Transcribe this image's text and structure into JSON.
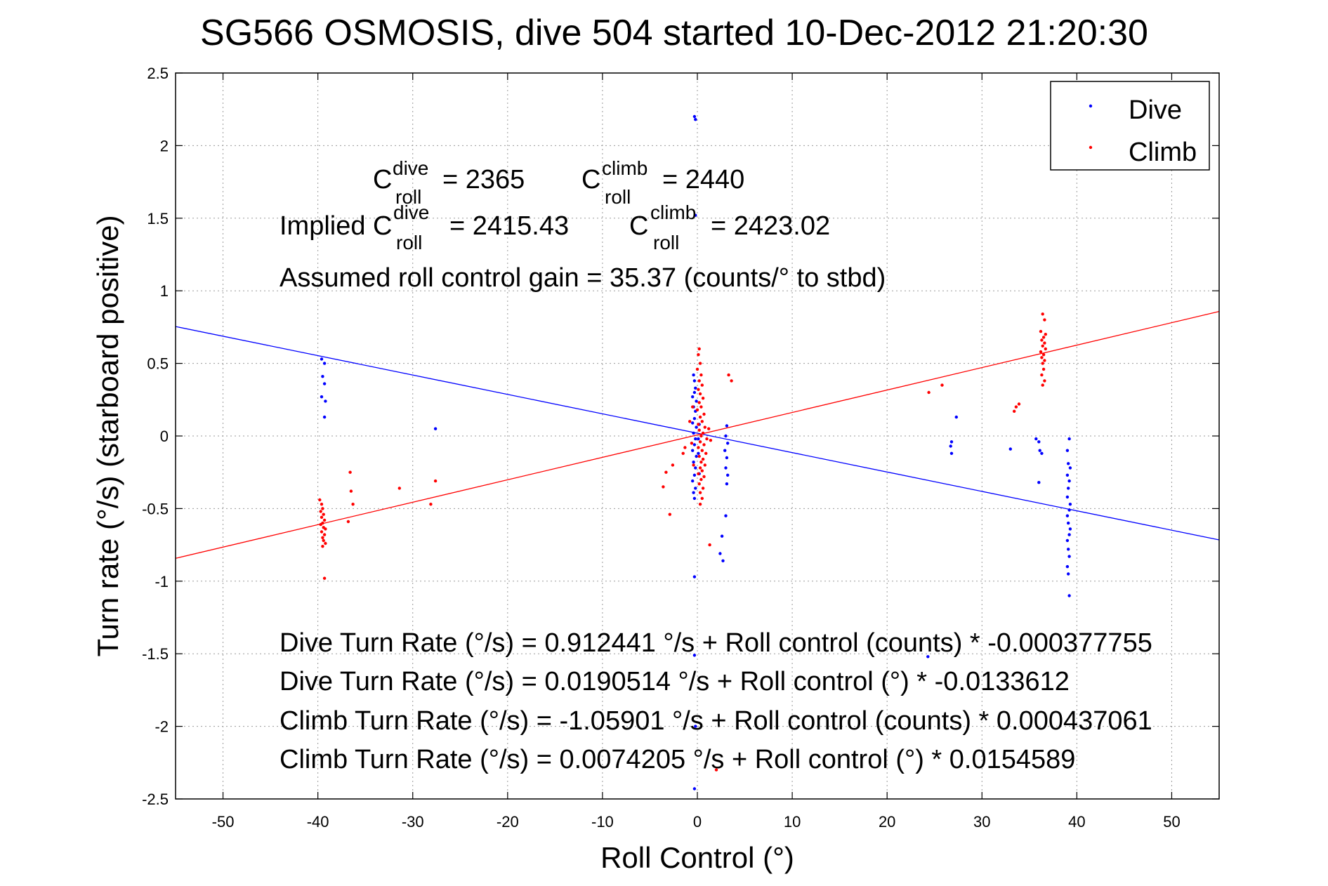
{
  "chart_data": {
    "type": "scatter",
    "title": "SG566 OSMOSIS, dive 504 started 10-Dec-2012 21:20:30",
    "xlabel": "Roll Control (°)",
    "ylabel": "Turn rate (°/s) (starboard positive)",
    "xlim": [
      -55,
      55
    ],
    "ylim": [
      -2.5,
      2.5
    ],
    "xticks": [
      -50,
      -40,
      -30,
      -20,
      -10,
      0,
      10,
      20,
      30,
      40,
      50
    ],
    "yticks": [
      -2.5,
      -2,
      -1.5,
      -1,
      -0.5,
      0,
      0.5,
      1,
      1.5,
      2,
      2.5
    ],
    "grid": true,
    "legend": {
      "position": "top-right",
      "entries": [
        {
          "label": "Dive",
          "color": "#0000ff"
        },
        {
          "label": "Climb",
          "color": "#ff0000"
        }
      ]
    },
    "annotations": {
      "c_dive_base": "C",
      "c_dive_sup": "dive",
      "c_dive_sub": "roll",
      "c_dive_value": "= 2365",
      "c_climb_base": "C",
      "c_climb_sup": "climb",
      "c_climb_sub": "roll",
      "c_climb_value": "= 2440",
      "implied_prefix": "Implied C",
      "implied_dive_sup": "dive",
      "implied_dive_sub": "roll",
      "implied_dive_value": "= 2415.43",
      "implied_climb_base": "C",
      "implied_climb_sup": "climb",
      "implied_climb_sub": "roll",
      "implied_climb_value": "= 2423.02",
      "gain": "Assumed roll control gain = 35.37 (counts/° to stbd)",
      "eq1": "Dive Turn Rate (°/s) = 0.912441 °/s + Roll control (counts) * -0.000377755",
      "eq2": "Dive Turn Rate (°/s) = 0.0190514 °/s + Roll control (°) * -0.0133612",
      "eq3": "Climb Turn Rate (°/s) = -1.05901 °/s + Roll control (counts) * 0.000437061",
      "eq4": "Climb Turn Rate (°/s) = 0.0074205 °/s + Roll control (°) * 0.0154589"
    },
    "series": [
      {
        "name": "Dive",
        "color": "#0000ff",
        "fit": {
          "intercept": 0.0190514,
          "slope": -0.0133612
        },
        "points": [
          [
            -0.3,
            2.2
          ],
          [
            -0.2,
            2.18
          ],
          [
            -0.2,
            1.52
          ],
          [
            -39.6,
            0.53
          ],
          [
            -39.3,
            0.5
          ],
          [
            -39.5,
            0.41
          ],
          [
            -39.3,
            0.36
          ],
          [
            -39.6,
            0.27
          ],
          [
            -39.2,
            0.24
          ],
          [
            -39.3,
            0.13
          ],
          [
            -27.6,
            0.05
          ],
          [
            -0.4,
            0.42
          ],
          [
            -0.3,
            0.38
          ],
          [
            -0.2,
            0.33
          ],
          [
            -0.3,
            0.3
          ],
          [
            -0.5,
            0.27
          ],
          [
            -0.1,
            0.24
          ],
          [
            -0.4,
            0.2
          ],
          [
            -0.2,
            0.17
          ],
          [
            -0.3,
            0.12
          ],
          [
            -0.5,
            0.09
          ],
          [
            -0.1,
            0.06
          ],
          [
            -0.4,
            0.02
          ],
          [
            -0.2,
            -0.02
          ],
          [
            -0.3,
            -0.06
          ],
          [
            -0.5,
            -0.1
          ],
          [
            -0.1,
            -0.14
          ],
          [
            -0.4,
            -0.18
          ],
          [
            -0.2,
            -0.22
          ],
          [
            -0.3,
            -0.27
          ],
          [
            -0.5,
            -0.31
          ],
          [
            -0.2,
            -0.36
          ],
          [
            -0.4,
            -0.39
          ],
          [
            -0.3,
            -0.43
          ],
          [
            0.1,
            -0.02
          ],
          [
            0.2,
            0.08
          ],
          [
            0.1,
            -0.12
          ],
          [
            0.2,
            -0.26
          ],
          [
            -0.3,
            -0.97
          ],
          [
            -0.3,
            -1.51
          ],
          [
            -0.2,
            -2.0
          ],
          [
            -0.3,
            -2.43
          ],
          [
            3.1,
            0.07
          ],
          [
            3.0,
            0.0
          ],
          [
            3.2,
            -0.05
          ],
          [
            2.9,
            -0.1
          ],
          [
            3.1,
            -0.15
          ],
          [
            3.0,
            -0.22
          ],
          [
            3.2,
            -0.27
          ],
          [
            3.1,
            -0.33
          ],
          [
            3.0,
            -0.55
          ],
          [
            2.6,
            -0.69
          ],
          [
            2.4,
            -0.81
          ],
          [
            2.7,
            -0.86
          ],
          [
            27.3,
            0.13
          ],
          [
            26.8,
            -0.04
          ],
          [
            26.7,
            -0.07
          ],
          [
            26.8,
            -0.12
          ],
          [
            33.0,
            -0.09
          ],
          [
            35.7,
            -0.02
          ],
          [
            36.0,
            -0.04
          ],
          [
            36.1,
            -0.1
          ],
          [
            36.3,
            -0.12
          ],
          [
            36.0,
            -0.32
          ],
          [
            39.2,
            -0.02
          ],
          [
            39.0,
            -0.1
          ],
          [
            39.1,
            -0.19
          ],
          [
            39.3,
            -0.22
          ],
          [
            39.0,
            -0.27
          ],
          [
            39.2,
            -0.31
          ],
          [
            39.1,
            -0.36
          ],
          [
            39.0,
            -0.42
          ],
          [
            39.3,
            -0.47
          ],
          [
            39.2,
            -0.51
          ],
          [
            39.0,
            -0.55
          ],
          [
            39.1,
            -0.6
          ],
          [
            39.3,
            -0.64
          ],
          [
            39.2,
            -0.68
          ],
          [
            39.0,
            -0.72
          ],
          [
            39.1,
            -0.78
          ],
          [
            39.2,
            -0.83
          ],
          [
            39.0,
            -0.9
          ],
          [
            39.1,
            -0.95
          ],
          [
            39.2,
            -1.1
          ],
          [
            24.3,
            -1.52
          ]
        ]
      },
      {
        "name": "Climb",
        "color": "#ff0000",
        "fit": {
          "intercept": 0.0074205,
          "slope": 0.0154589
        },
        "points": [
          [
            -39.8,
            -0.44
          ],
          [
            -39.6,
            -0.47
          ],
          [
            -39.5,
            -0.5
          ],
          [
            -39.7,
            -0.52
          ],
          [
            -39.4,
            -0.54
          ],
          [
            -39.6,
            -0.56
          ],
          [
            -39.3,
            -0.58
          ],
          [
            -39.5,
            -0.6
          ],
          [
            -39.7,
            -0.61
          ],
          [
            -39.4,
            -0.63
          ],
          [
            -39.2,
            -0.64
          ],
          [
            -39.6,
            -0.66
          ],
          [
            -39.3,
            -0.68
          ],
          [
            -39.5,
            -0.7
          ],
          [
            -39.4,
            -0.72
          ],
          [
            -39.2,
            -0.74
          ],
          [
            -39.5,
            -0.76
          ],
          [
            -39.3,
            -0.98
          ],
          [
            -36.6,
            -0.25
          ],
          [
            -36.5,
            -0.38
          ],
          [
            -36.3,
            -0.47
          ],
          [
            -36.8,
            -0.59
          ],
          [
            -31.4,
            -0.36
          ],
          [
            -28.1,
            -0.47
          ],
          [
            -27.6,
            -0.31
          ],
          [
            0.2,
            0.6
          ],
          [
            0.1,
            0.56
          ],
          [
            0.3,
            0.5
          ],
          [
            0.0,
            0.46
          ],
          [
            0.4,
            0.42
          ],
          [
            0.2,
            0.38
          ],
          [
            0.5,
            0.35
          ],
          [
            0.1,
            0.32
          ],
          [
            0.3,
            0.29
          ],
          [
            0.6,
            0.26
          ],
          [
            0.2,
            0.23
          ],
          [
            0.4,
            0.2
          ],
          [
            0.0,
            0.18
          ],
          [
            0.7,
            0.15
          ],
          [
            0.3,
            0.13
          ],
          [
            0.5,
            0.1
          ],
          [
            0.1,
            0.08
          ],
          [
            0.8,
            0.06
          ],
          [
            0.2,
            0.04
          ],
          [
            0.6,
            0.02
          ],
          [
            0.4,
            0.0
          ],
          [
            1.0,
            -0.02
          ],
          [
            0.3,
            -0.04
          ],
          [
            0.7,
            -0.06
          ],
          [
            0.1,
            -0.08
          ],
          [
            0.5,
            -0.1
          ],
          [
            0.9,
            -0.12
          ],
          [
            0.2,
            -0.14
          ],
          [
            0.6,
            -0.16
          ],
          [
            0.4,
            -0.18
          ],
          [
            0.8,
            -0.2
          ],
          [
            0.3,
            -0.22
          ],
          [
            0.5,
            -0.24
          ],
          [
            0.1,
            -0.26
          ],
          [
            0.7,
            -0.28
          ],
          [
            0.4,
            -0.3
          ],
          [
            0.2,
            -0.33
          ],
          [
            0.6,
            -0.36
          ],
          [
            0.3,
            -0.39
          ],
          [
            0.5,
            -0.43
          ],
          [
            0.3,
            -0.47
          ],
          [
            1.2,
            0.05
          ],
          [
            1.4,
            -0.03
          ],
          [
            -0.5,
            0.2
          ],
          [
            -0.6,
            -0.05
          ],
          [
            -0.8,
            0.1
          ],
          [
            -0.4,
            -0.2
          ],
          [
            -1.5,
            -0.12
          ],
          [
            -1.3,
            -0.08
          ],
          [
            -2.6,
            -0.2
          ],
          [
            -3.3,
            -0.25
          ],
          [
            -3.6,
            -0.35
          ],
          [
            -2.9,
            -0.54
          ],
          [
            1.3,
            -0.75
          ],
          [
            2.0,
            -2.3
          ],
          [
            3.3,
            0.42
          ],
          [
            3.6,
            0.38
          ],
          [
            24.4,
            0.3
          ],
          [
            25.8,
            0.35
          ],
          [
            33.6,
            0.2
          ],
          [
            33.9,
            0.22
          ],
          [
            33.4,
            0.17
          ],
          [
            36.4,
            0.84
          ],
          [
            36.6,
            0.8
          ],
          [
            36.2,
            0.72
          ],
          [
            36.7,
            0.7
          ],
          [
            36.5,
            0.68
          ],
          [
            36.3,
            0.66
          ],
          [
            36.6,
            0.64
          ],
          [
            36.4,
            0.62
          ],
          [
            36.7,
            0.6
          ],
          [
            36.2,
            0.58
          ],
          [
            36.5,
            0.56
          ],
          [
            36.3,
            0.54
          ],
          [
            36.6,
            0.52
          ],
          [
            36.4,
            0.5
          ],
          [
            36.5,
            0.46
          ],
          [
            36.3,
            0.42
          ],
          [
            36.6,
            0.38
          ],
          [
            36.4,
            0.35
          ]
        ]
      }
    ]
  }
}
